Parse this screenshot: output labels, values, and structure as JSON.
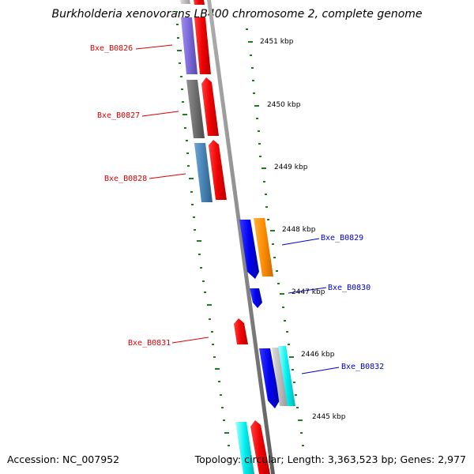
{
  "title": "Burkholderia xenovorans LB400 chromosome 2, complete genome",
  "accession": "Accession: NC_007952",
  "summary": "Topology: circular; Length: 3,363,523 bp; Genes: 2,977",
  "scale_labels": [
    "2451 kbp",
    "2450 kbp",
    "2449 kbp",
    "2448 kbp",
    "2447 kbp",
    "2446 kbp",
    "2445 kbp"
  ],
  "gene_labels": [
    {
      "text": "Bxe_B0826",
      "color": "#dd0000"
    },
    {
      "text": "Bxe_B0827",
      "color": "#dd0000"
    },
    {
      "text": "Bxe_B0828",
      "color": "#dd0000"
    },
    {
      "text": "Bxe_B0829",
      "color": "#0000cc"
    },
    {
      "text": "Bxe_B0830",
      "color": "#0000cc"
    },
    {
      "text": "Bxe_B0831",
      "color": "#dd0000"
    },
    {
      "text": "Bxe_B0832",
      "color": "#0000cc"
    }
  ],
  "colors": {
    "backbone": "#8c8c8c",
    "tick": "#1e7d1e",
    "forward_gene": "#ee0000",
    "reverse_gene": "#0000ee",
    "orange_gene": "#ff8c00",
    "cyan_gene": "#00eeee",
    "gray_gene": "#6e6e6e",
    "steelblue_gene": "#4682b4",
    "purple_gene": "#7a68d6",
    "lightgray_gene": "#bbbbbb"
  }
}
